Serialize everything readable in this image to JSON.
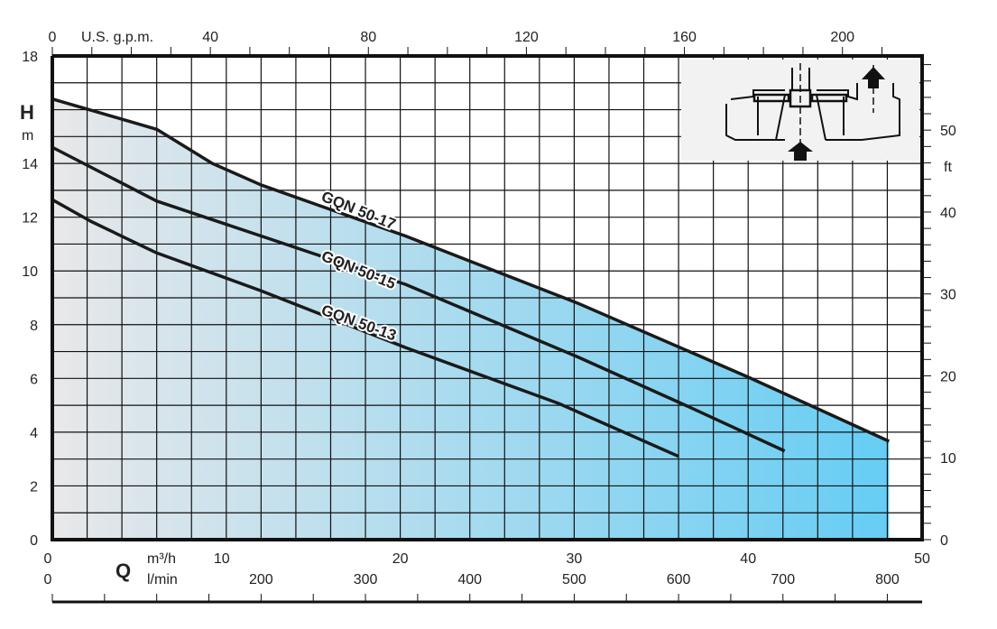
{
  "chart_data": {
    "type": "line",
    "title": "",
    "y_axis_left": {
      "label": "H",
      "unit": "m",
      "range": [
        0,
        18
      ],
      "ticks": [
        0,
        2,
        4,
        6,
        8,
        10,
        12,
        14,
        16,
        18
      ],
      "tick_labels": [
        "0",
        "2",
        "4",
        "6",
        "8",
        "10",
        "12",
        "14",
        "",
        "18"
      ]
    },
    "y_axis_right": {
      "unit": "ft",
      "ticks": [
        0,
        10,
        20,
        30,
        40,
        50
      ],
      "minor_step": 2
    },
    "x_axis_bottom": {
      "label": "Q",
      "unit": "m³/h",
      "range": [
        0,
        50
      ],
      "ticks": [
        0,
        10,
        20,
        30,
        40,
        50
      ]
    },
    "x_axis_bottom2": {
      "unit": "l/min",
      "ticks": [
        0,
        200,
        300,
        400,
        500,
        600,
        700,
        800
      ],
      "minor_step": 50
    },
    "x_axis_top": {
      "unit": "U.S. g.p.m.",
      "ticks": [
        0,
        40,
        80,
        120,
        160,
        200
      ],
      "minor_step": 10
    },
    "grid": true,
    "colors": {
      "curve": "#1a1a1a",
      "fill_start": "#e8e8ea",
      "fill_end": "#66cdf4",
      "inset_bg": "#f2f2f2"
    },
    "series": [
      {
        "name": "GQN 50-17",
        "x": [
          0,
          6,
          9.2,
          12,
          20.3,
          30.2,
          40,
          48.1
        ],
        "y": [
          16.4,
          15.27,
          14.0,
          13.2,
          11.3,
          8.8,
          6.05,
          3.66
        ]
      },
      {
        "name": "GQN 50-15",
        "x": [
          0,
          6,
          12,
          20.3,
          30.2,
          36.4,
          42.1
        ],
        "y": [
          14.6,
          12.6,
          11.3,
          9.5,
          6.8,
          5.0,
          3.3
        ]
      },
      {
        "name": "GQN 50-13",
        "x": [
          0,
          2.2,
          6,
          12,
          20.3,
          29.1,
          36
        ],
        "y": [
          12.65,
          11.85,
          10.67,
          9.26,
          7.15,
          5.07,
          3.1
        ]
      }
    ],
    "inset": {
      "icon": "pump-cross-section-icon"
    }
  }
}
